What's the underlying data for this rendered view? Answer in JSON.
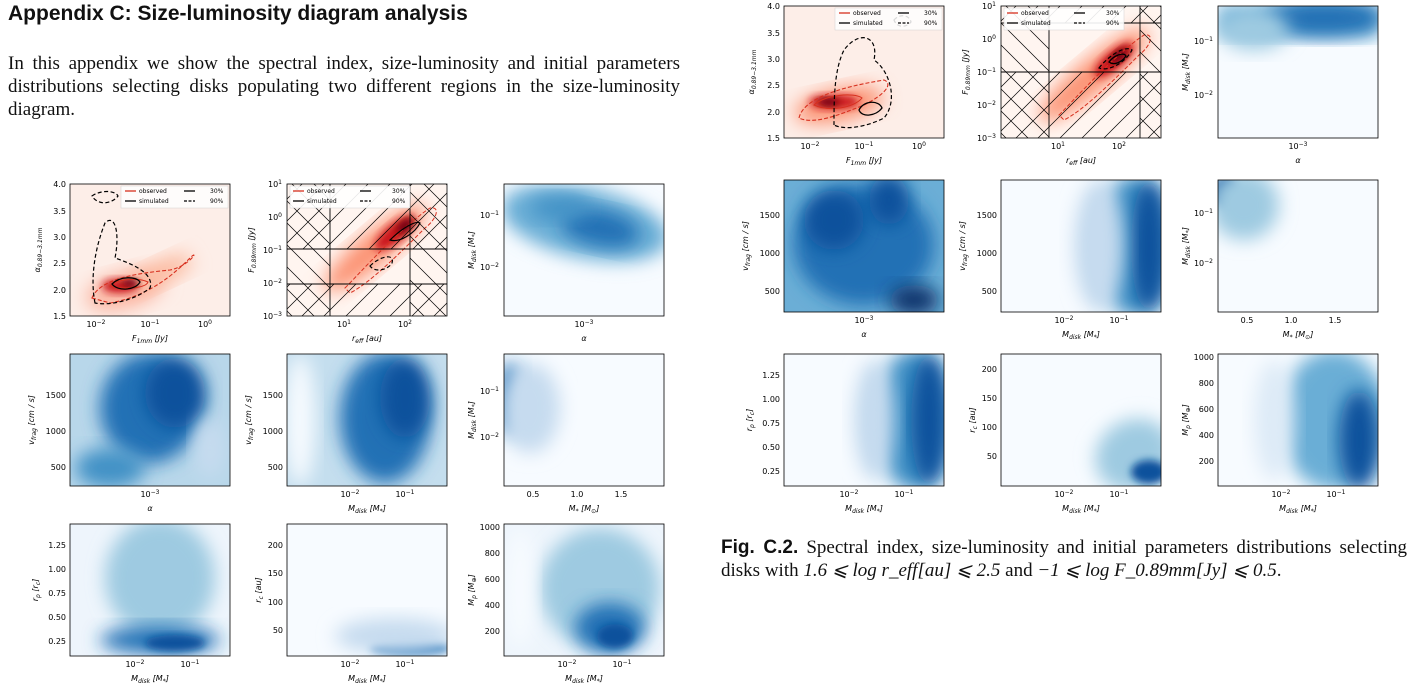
{
  "appendix": {
    "heading": "Appendix C: Size-luminosity diagram analysis",
    "intro": "In this appendix we show the spectral index, size-luminosity and initial parameters distributions selecting disks populating two different regions in the size-luminosity diagram."
  },
  "figure_c2_caption": {
    "label": "Fig. C.2.",
    "text_before": "Spectral index, size-luminosity and initial parameters distributions selecting disks with ",
    "cond1": "1.6 ⩽ log r_eff[au] ⩽ 2.5",
    "between": " and ",
    "cond2": "−1 ⩽ log F_0.89mm[Jy] ⩽ 0.5",
    "end": "."
  },
  "legend": {
    "observed": "observed",
    "simulated": "simulated",
    "c30": "30%",
    "c90": "90%"
  },
  "colors": {
    "red": "#d7301f",
    "blue": "#08519c",
    "hatch": "#000000"
  },
  "chart_data": [
    {
      "figure": "left",
      "panels": [
        {
          "id": "spectral-index",
          "type": "heatmap",
          "xlabel": "F_1mm [Jy]",
          "ylabel": "α_0.89−3.1mm",
          "xscale": "log",
          "xticks": [
            "10^-2",
            "10^-1",
            "10^0"
          ],
          "yticks": [
            "1.5",
            "2.0",
            "2.5",
            "3.0",
            "3.5",
            "4.0"
          ],
          "ylim": [
            1.5,
            4.0
          ],
          "cmap": "Reds",
          "legend": [
            "observed",
            "simulated",
            "30%",
            "90%"
          ]
        },
        {
          "id": "size-luminosity",
          "type": "heatmap",
          "xlabel": "r_eff [au]",
          "ylabel": "F_0.89mm [Jy]",
          "xscale": "log",
          "yscale": "log",
          "xticks": [
            "10^1",
            "10^2"
          ],
          "yticks": [
            "10^-3",
            "10^-2",
            "10^-1",
            "10^0",
            "10^1"
          ],
          "cmap": "Reds",
          "legend": [
            "observed",
            "simulated",
            "30%",
            "90%"
          ],
          "hatched_selection": "outside 1.6–2.5 log r_eff and −2 to −1 log F"
        },
        {
          "id": "mdisk-alpha",
          "type": "heatmap",
          "xlabel": "α",
          "ylabel": "M_disk [M_*]",
          "xticks": [
            "10^-3"
          ],
          "yticks": [
            "10^-2",
            "10^-1"
          ],
          "cmap": "Blues"
        },
        {
          "id": "vfrag-alpha",
          "type": "heatmap",
          "xlabel": "α",
          "ylabel": "v_frag [cm / s]",
          "xticks": [
            "10^-3"
          ],
          "yticks": [
            "500",
            "1000",
            "1500"
          ],
          "cmap": "Blues"
        },
        {
          "id": "vfrag-mdisk",
          "type": "heatmap",
          "xlabel": "M_disk [M_*]",
          "ylabel": "v_frag [cm / s]",
          "xticks": [
            "10^-2",
            "10^-1"
          ],
          "yticks": [
            "500",
            "1000",
            "1500"
          ],
          "cmap": "Blues"
        },
        {
          "id": "mdisk-mstar",
          "type": "heatmap",
          "xlabel": "M_* [M_⊙]",
          "ylabel": "M_disk [M_*]",
          "xticks": [
            "0.5",
            "1.0",
            "1.5"
          ],
          "yticks": [
            "10^-2",
            "10^-1"
          ],
          "cmap": "Blues"
        },
        {
          "id": "rp-mdisk",
          "type": "heatmap",
          "xlabel": "M_disk [M_*]",
          "ylabel": "r_p [r_c]",
          "xticks": [
            "10^-2",
            "10^-1"
          ],
          "yticks": [
            "0.25",
            "0.50",
            "0.75",
            "1.00",
            "1.25"
          ],
          "cmap": "Blues"
        },
        {
          "id": "rc-mdisk",
          "type": "heatmap",
          "xlabel": "M_disk [M_*]",
          "ylabel": "r_c [au]",
          "xticks": [
            "10^-2",
            "10^-1"
          ],
          "yticks": [
            "50",
            "100",
            "150",
            "200"
          ],
          "cmap": "Blues"
        },
        {
          "id": "mp-mdisk",
          "type": "heatmap",
          "xlabel": "M_disk [M_*]",
          "ylabel": "M_p [M_⊕]",
          "xticks": [
            "10^-2",
            "10^-1"
          ],
          "yticks": [
            "200",
            "400",
            "600",
            "800",
            "1000"
          ],
          "cmap": "Blues"
        }
      ]
    },
    {
      "figure": "Fig. C.2.",
      "panels": [
        {
          "id": "spectral-index",
          "type": "heatmap",
          "xlabel": "F_1mm [Jy]",
          "ylabel": "α_0.89−3.1mm",
          "xscale": "log",
          "xticks": [
            "10^-2",
            "10^-1",
            "10^0"
          ],
          "yticks": [
            "1.5",
            "2.0",
            "2.5",
            "3.0",
            "3.5",
            "4.0"
          ],
          "ylim": [
            1.5,
            4.0
          ],
          "cmap": "Reds",
          "legend": [
            "observed",
            "simulated",
            "30%",
            "90%"
          ]
        },
        {
          "id": "size-luminosity",
          "type": "heatmap",
          "xlabel": "r_eff [au]",
          "ylabel": "F_0.89mm [Jy]",
          "xscale": "log",
          "yscale": "log",
          "xticks": [
            "10^1",
            "10^2"
          ],
          "yticks": [
            "10^-3",
            "10^-2",
            "10^-1",
            "10^0",
            "10^1"
          ],
          "cmap": "Reds",
          "legend": [
            "observed",
            "simulated",
            "30%",
            "90%"
          ],
          "hatched_selection": "outside 1.6–2.5 log r_eff and −1 to 0.5 log F"
        },
        {
          "id": "mdisk-alpha",
          "type": "heatmap",
          "xlabel": "α",
          "ylabel": "M_disk [M_*]",
          "xticks": [
            "10^-3"
          ],
          "yticks": [
            "10^-2",
            "10^-1"
          ],
          "cmap": "Blues"
        },
        {
          "id": "vfrag-alpha",
          "type": "heatmap",
          "xlabel": "α",
          "ylabel": "v_frag [cm / s]",
          "xticks": [
            "10^-3"
          ],
          "yticks": [
            "500",
            "1000",
            "1500"
          ],
          "cmap": "Blues"
        },
        {
          "id": "vfrag-mdisk",
          "type": "heatmap",
          "xlabel": "M_disk [M_*]",
          "ylabel": "v_frag [cm / s]",
          "xticks": [
            "10^-2",
            "10^-1"
          ],
          "yticks": [
            "500",
            "1000",
            "1500"
          ],
          "cmap": "Blues"
        },
        {
          "id": "mdisk-mstar",
          "type": "heatmap",
          "xlabel": "M_* [M_⊙]",
          "ylabel": "M_disk [M_*]",
          "xticks": [
            "0.5",
            "1.0",
            "1.5"
          ],
          "yticks": [
            "10^-2",
            "10^-1"
          ],
          "cmap": "Blues"
        },
        {
          "id": "rp-mdisk",
          "type": "heatmap",
          "xlabel": "M_disk [M_*]",
          "ylabel": "r_p [r_c]",
          "xticks": [
            "10^-2",
            "10^-1"
          ],
          "yticks": [
            "0.25",
            "0.50",
            "0.75",
            "1.00",
            "1.25"
          ],
          "cmap": "Blues"
        },
        {
          "id": "rc-mdisk",
          "type": "heatmap",
          "xlabel": "M_disk [M_*]",
          "ylabel": "r_c [au]",
          "xticks": [
            "10^-2",
            "10^-1"
          ],
          "yticks": [
            "50",
            "100",
            "150",
            "200"
          ],
          "cmap": "Blues"
        },
        {
          "id": "mp-mdisk",
          "type": "heatmap",
          "xlabel": "M_disk [M_*]",
          "ylabel": "M_p [M_⊕]",
          "xticks": [
            "10^-2",
            "10^-1"
          ],
          "yticks": [
            "200",
            "400",
            "600",
            "800",
            "1000"
          ],
          "cmap": "Blues"
        }
      ]
    }
  ]
}
